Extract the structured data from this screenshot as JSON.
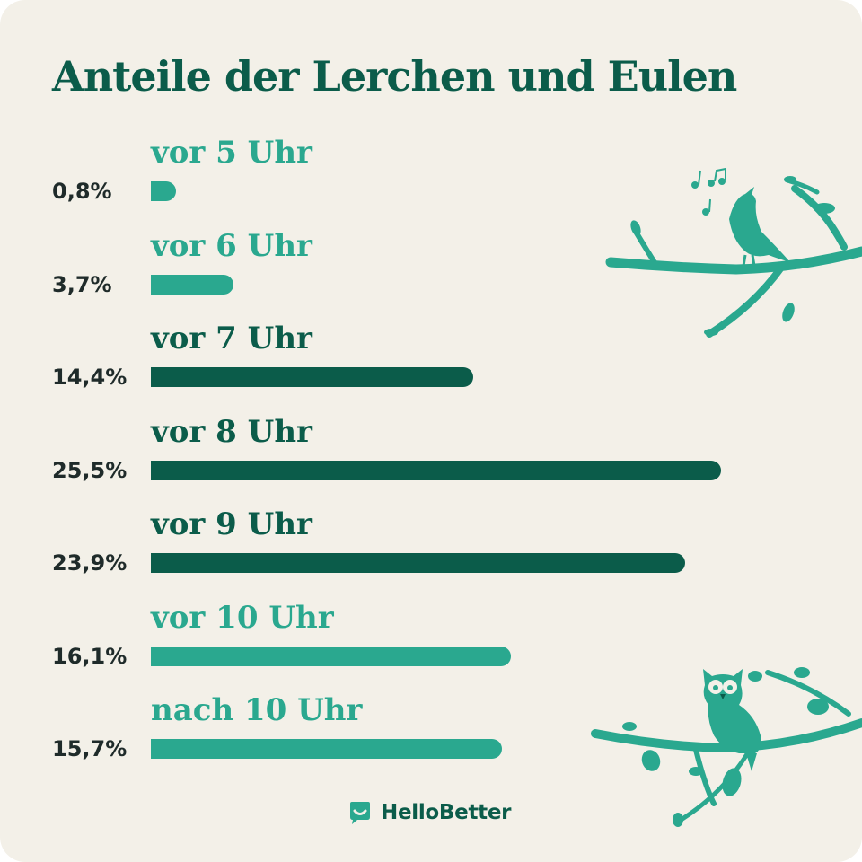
{
  "chart_data": {
    "type": "bar",
    "orientation": "horizontal",
    "title": "Anteile der Lerchen und Eulen",
    "categories": [
      "vor 5 Uhr",
      "vor 6 Uhr",
      "vor 7 Uhr",
      "vor 8 Uhr",
      "vor 9 Uhr",
      "vor 10 Uhr",
      "nach 10 Uhr"
    ],
    "values": [
      0.8,
      3.7,
      14.4,
      25.5,
      23.9,
      16.1,
      15.7
    ],
    "value_labels": [
      "0,8%",
      "3,7%",
      "14,4%",
      "25,5%",
      "23,9%",
      "16,1%",
      "15,7%"
    ],
    "unit": "%",
    "grid": false,
    "legend": "none",
    "colors": {
      "light": "#2aa88f",
      "dark": "#0b5c4a",
      "label_text": "#1f2b2a",
      "background": "#f3f0e8"
    },
    "bar_color_keys": [
      "light",
      "light",
      "dark",
      "dark",
      "dark",
      "light",
      "light"
    ]
  },
  "brand": {
    "logo_text": "HelloBetter"
  },
  "icons": [
    "bird-on-branch-illustration",
    "owl-on-branch-illustration",
    "hellobetter-logo-icon"
  ]
}
